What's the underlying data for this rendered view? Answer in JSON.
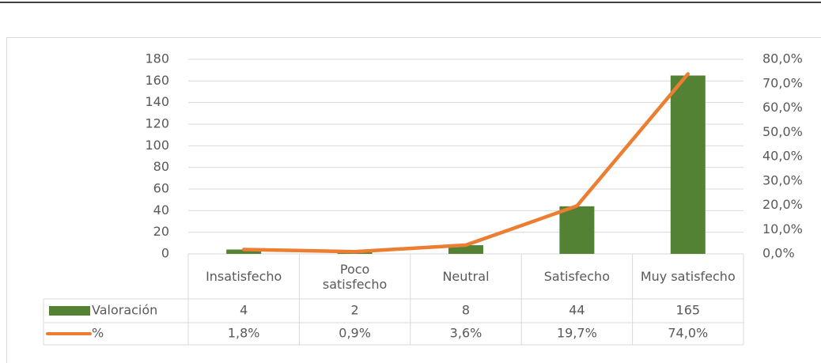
{
  "chart_data": {
    "type": "bar",
    "categories": [
      "Insatisfecho",
      "Poco satisfecho",
      "Neutral",
      "Satisfecho",
      "Muy satisfecho"
    ],
    "series": [
      {
        "name": "Valoración",
        "type": "bar",
        "color": "#548235",
        "values": [
          4,
          2,
          8,
          44,
          165
        ]
      },
      {
        "name": "%",
        "type": "line",
        "axis": "y2",
        "color": "#ed7d31",
        "values": [
          1.8,
          0.9,
          3.6,
          19.7,
          74.0
        ],
        "value_labels": [
          "1,8%",
          "0,9%",
          "3,6%",
          "19,7%",
          "74,0%"
        ]
      }
    ],
    "ylim": [
      0,
      180
    ],
    "yticks": [
      0,
      20,
      40,
      60,
      80,
      100,
      120,
      140,
      160,
      180
    ],
    "y2lim": [
      0,
      80
    ],
    "y2ticks": [
      {
        "value": 0,
        "label": "0,0%"
      },
      {
        "value": 10,
        "label": "10,0%"
      },
      {
        "value": 20,
        "label": "20,0%"
      },
      {
        "value": 30,
        "label": "30,0%"
      },
      {
        "value": 40,
        "label": "40,0%"
      },
      {
        "value": 50,
        "label": "50,0%"
      },
      {
        "value": 60,
        "label": "60,0%"
      },
      {
        "value": 70,
        "label": "70,0%"
      },
      {
        "value": 80,
        "label": "80,0%"
      }
    ],
    "grid": true
  }
}
